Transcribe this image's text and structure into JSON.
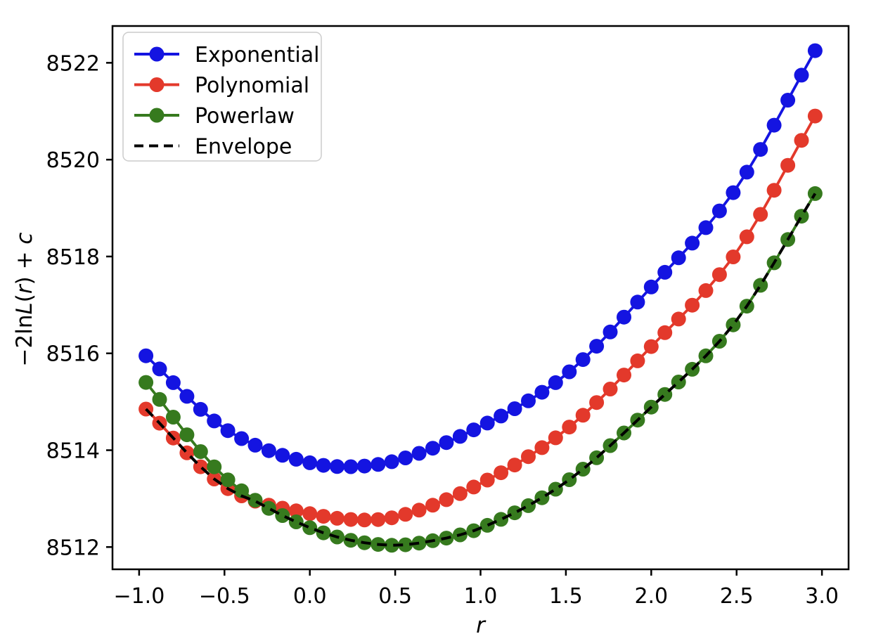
{
  "figure": {
    "xlabel": "r",
    "ylabel_plain": "−2lnL(r) + c",
    "ylabel_parts": [
      {
        "t": "−2ln",
        "italic": false
      },
      {
        "t": "L",
        "italic": true
      },
      {
        "t": "(",
        "italic": false
      },
      {
        "t": "r",
        "italic": true
      },
      {
        "t": ") + ",
        "italic": false
      },
      {
        "t": "c",
        "italic": true
      }
    ],
    "background": "#ffffff",
    "axis_color": "#000000"
  },
  "chart_data": {
    "type": "line",
    "title": "",
    "xlabel": "r",
    "ylabel": "-2 ln L(r) + c",
    "xlim": [
      -1.156,
      3.156
    ],
    "ylim": [
      8511.54,
      8522.76
    ],
    "grid": false,
    "legend_position": "upper-left",
    "xticks": [
      -1.0,
      -0.5,
      0.0,
      0.5,
      1.0,
      1.5,
      2.0,
      2.5,
      3.0
    ],
    "xtick_labels": [
      "−1.0",
      "−0.5",
      "0.0",
      "0.5",
      "1.0",
      "1.5",
      "2.0",
      "2.5",
      "3.0"
    ],
    "yticks": [
      8512,
      8514,
      8516,
      8518,
      8520,
      8522
    ],
    "ytick_labels": [
      "8512",
      "8514",
      "8516",
      "8518",
      "8520",
      "8522"
    ],
    "marker_x_start": -0.96,
    "marker_x_end": 2.96,
    "n_markers": 50,
    "series": [
      {
        "name": "Exponential",
        "color": "#1414e1",
        "style": "solid-with-markers",
        "anchors": [
          [
            -0.96,
            8515.95
          ],
          [
            -0.5,
            8514.45
          ],
          [
            0.0,
            8513.74
          ],
          [
            0.25,
            8513.66
          ],
          [
            0.5,
            8513.78
          ],
          [
            1.0,
            8514.49
          ],
          [
            1.5,
            8515.56
          ],
          [
            2.0,
            8517.37
          ],
          [
            2.5,
            8519.42
          ],
          [
            2.96,
            8522.25
          ]
        ]
      },
      {
        "name": "Polynomial",
        "color": "#e3392b",
        "style": "solid-with-markers",
        "anchors": [
          [
            -0.96,
            8514.85
          ],
          [
            -0.5,
            8513.25
          ],
          [
            0.0,
            8512.69
          ],
          [
            0.3,
            8512.56
          ],
          [
            0.5,
            8512.62
          ],
          [
            1.0,
            8513.31
          ],
          [
            1.5,
            8514.42
          ],
          [
            2.0,
            8516.14
          ],
          [
            2.5,
            8518.09
          ],
          [
            2.96,
            8520.9
          ]
        ]
      },
      {
        "name": "Powerlaw",
        "color": "#367a1e",
        "style": "solid-with-markers",
        "anchors": [
          [
            -0.96,
            8515.4
          ],
          [
            -0.5,
            8513.45
          ],
          [
            0.0,
            8512.4
          ],
          [
            0.45,
            8512.04
          ],
          [
            0.75,
            8512.15
          ],
          [
            1.0,
            8512.39
          ],
          [
            1.5,
            8513.34
          ],
          [
            2.0,
            8514.89
          ],
          [
            2.5,
            8516.68
          ],
          [
            2.96,
            8519.3
          ]
        ]
      },
      {
        "name": "Envelope",
        "color": "#000000",
        "style": "dashed",
        "rule": "pointwise-min-of-other-series"
      }
    ]
  },
  "legend": {
    "items": [
      {
        "label": "Exponential",
        "color": "#1414e1",
        "marker": true,
        "dashed": false
      },
      {
        "label": "Polynomial",
        "color": "#e3392b",
        "marker": true,
        "dashed": false
      },
      {
        "label": "Powerlaw",
        "color": "#367a1e",
        "marker": true,
        "dashed": false
      },
      {
        "label": "Envelope",
        "color": "#000000",
        "marker": false,
        "dashed": true
      }
    ]
  }
}
